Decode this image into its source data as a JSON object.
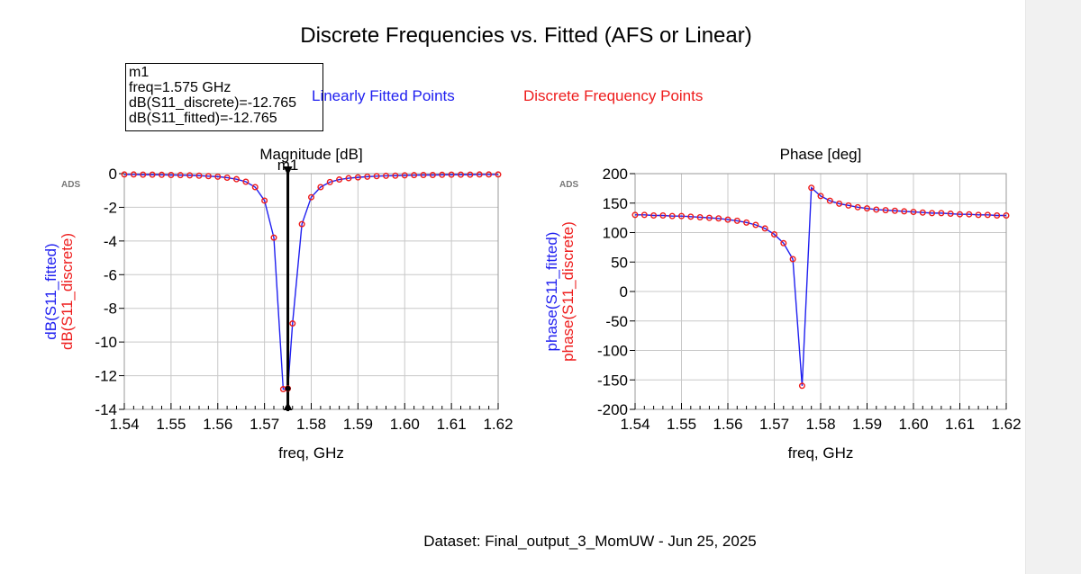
{
  "title": "Discrete Frequencies vs. Fitted (AFS or Linear)",
  "marker": {
    "name": "m1",
    "lines": [
      "m1",
      "freq=1.575 GHz",
      "dB(S11_discrete)=-12.765",
      "dB(S11_fitted)=-12.765"
    ]
  },
  "legend": {
    "fitted": "Linearly Fitted Points",
    "discrete": "Discrete Frequency Points"
  },
  "colors": {
    "fitted": "#2020f0",
    "discrete": "#ee1c1c",
    "grid": "#c8c8c8",
    "marker_line": "#000000"
  },
  "footer": "Dataset: Final_output_3_MomUW - Jun 25, 2025",
  "ads_mark": "ADS",
  "chart_data": [
    {
      "type": "line",
      "title": "Magnitude [dB]",
      "xlabel": "freq, GHz",
      "ylabels": [
        "dB(S11_fitted)",
        "dB(S11_discrete)"
      ],
      "xlim": [
        1.54,
        1.62
      ],
      "ylim": [
        -14,
        0
      ],
      "xticks": [
        "1.54",
        "1.55",
        "1.56",
        "1.57",
        "1.58",
        "1.59",
        "1.60",
        "1.61",
        "1.62"
      ],
      "yticks": [
        "0",
        "-2",
        "-4",
        "-6",
        "-8",
        "-10",
        "-12",
        "-14"
      ],
      "grid": true,
      "marker": {
        "label": "m1",
        "x": 1.575,
        "y": -12.765
      },
      "x": [
        1.54,
        1.542,
        1.544,
        1.546,
        1.548,
        1.55,
        1.552,
        1.554,
        1.556,
        1.558,
        1.56,
        1.562,
        1.564,
        1.566,
        1.568,
        1.57,
        1.572,
        1.574,
        1.575,
        1.576,
        1.578,
        1.58,
        1.582,
        1.584,
        1.586,
        1.588,
        1.59,
        1.592,
        1.594,
        1.596,
        1.598,
        1.6,
        1.602,
        1.604,
        1.606,
        1.608,
        1.61,
        1.612,
        1.614,
        1.616,
        1.618,
        1.62
      ],
      "series": [
        {
          "name": "dB(S11_fitted)",
          "values": [
            -0.05,
            -0.05,
            -0.06,
            -0.06,
            -0.07,
            -0.08,
            -0.09,
            -0.1,
            -0.12,
            -0.15,
            -0.18,
            -0.24,
            -0.33,
            -0.48,
            -0.8,
            -1.6,
            -3.8,
            -12.8,
            -12.765,
            -8.9,
            -3.0,
            -1.4,
            -0.8,
            -0.5,
            -0.35,
            -0.27,
            -0.22,
            -0.18,
            -0.15,
            -0.13,
            -0.12,
            -0.1,
            -0.09,
            -0.08,
            -0.08,
            -0.07,
            -0.06,
            -0.06,
            -0.06,
            -0.05,
            -0.05,
            -0.05
          ]
        },
        {
          "name": "dB(S11_discrete)",
          "values": [
            -0.05,
            -0.05,
            -0.06,
            -0.06,
            -0.07,
            -0.08,
            -0.09,
            -0.1,
            -0.12,
            -0.15,
            -0.18,
            -0.24,
            -0.33,
            -0.48,
            -0.8,
            -1.6,
            -3.8,
            -12.8,
            -12.765,
            -8.9,
            -3.0,
            -1.4,
            -0.8,
            -0.5,
            -0.35,
            -0.27,
            -0.22,
            -0.18,
            -0.15,
            -0.13,
            -0.12,
            -0.1,
            -0.09,
            -0.08,
            -0.08,
            -0.07,
            -0.06,
            -0.06,
            -0.06,
            -0.05,
            -0.05,
            -0.05
          ]
        }
      ]
    },
    {
      "type": "line",
      "title": "Phase [deg]",
      "xlabel": "freq, GHz",
      "ylabels": [
        "phase(S11_fitted)",
        "phase(S11_discrete)"
      ],
      "xlim": [
        1.54,
        1.62
      ],
      "ylim": [
        -200,
        200
      ],
      "xticks": [
        "1.54",
        "1.55",
        "1.56",
        "1.57",
        "1.58",
        "1.59",
        "1.60",
        "1.61",
        "1.62"
      ],
      "yticks": [
        "200",
        "150",
        "100",
        "50",
        "0",
        "-50",
        "-100",
        "-150",
        "-200"
      ],
      "grid": true,
      "x": [
        1.54,
        1.542,
        1.544,
        1.546,
        1.548,
        1.55,
        1.552,
        1.554,
        1.556,
        1.558,
        1.56,
        1.562,
        1.564,
        1.566,
        1.568,
        1.57,
        1.572,
        1.574,
        1.576,
        1.578,
        1.58,
        1.582,
        1.584,
        1.586,
        1.588,
        1.59,
        1.592,
        1.594,
        1.596,
        1.598,
        1.6,
        1.602,
        1.604,
        1.606,
        1.608,
        1.61,
        1.612,
        1.614,
        1.616,
        1.618,
        1.62
      ],
      "series": [
        {
          "name": "phase(S11_fitted)",
          "values": [
            130,
            130,
            129,
            129,
            128,
            128,
            127,
            126,
            125,
            124,
            122,
            120,
            117,
            113,
            107,
            97,
            82,
            55,
            -160,
            176,
            162,
            154,
            149,
            146,
            143,
            141,
            139,
            138,
            137,
            136,
            135,
            134,
            133,
            133,
            132,
            131,
            131,
            130,
            130,
            129,
            129
          ]
        },
        {
          "name": "phase(S11_discrete)",
          "values": [
            130,
            130,
            129,
            129,
            128,
            128,
            127,
            126,
            125,
            124,
            122,
            120,
            117,
            113,
            107,
            97,
            82,
            55,
            -160,
            176,
            162,
            154,
            149,
            146,
            143,
            141,
            139,
            138,
            137,
            136,
            135,
            134,
            133,
            133,
            132,
            131,
            131,
            130,
            130,
            129,
            129
          ]
        }
      ]
    }
  ]
}
